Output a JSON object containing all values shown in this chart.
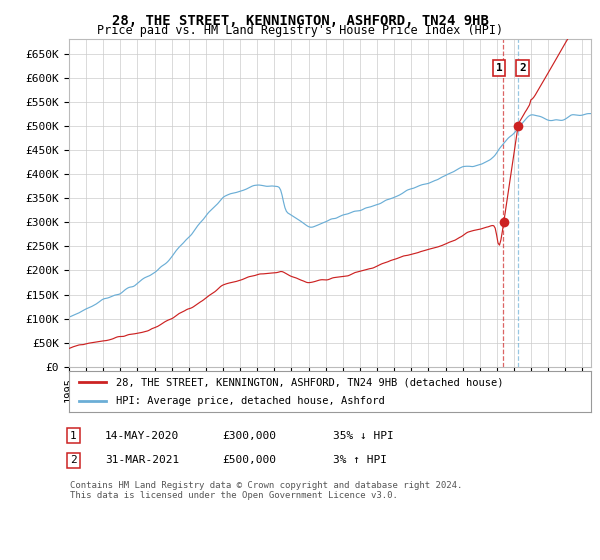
{
  "title": "28, THE STREET, KENNINGTON, ASHFORD, TN24 9HB",
  "subtitle": "Price paid vs. HM Land Registry's House Price Index (HPI)",
  "yticks": [
    0,
    50000,
    100000,
    150000,
    200000,
    250000,
    300000,
    350000,
    400000,
    450000,
    500000,
    550000,
    600000,
    650000
  ],
  "ylim": [
    0,
    680000
  ],
  "xlim_start": 1995.0,
  "xlim_end": 2025.5,
  "hpi_color": "#6baed6",
  "price_color": "#cc2222",
  "background_color": "#ffffff",
  "grid_color": "#cccccc",
  "transaction1": {
    "date": 2020.37,
    "price": 300000,
    "label": "1",
    "pct": "35% ↓ HPI",
    "display": "14-MAY-2020",
    "amount": "£300,000"
  },
  "transaction2": {
    "date": 2021.25,
    "price": 500000,
    "label": "2",
    "pct": "3% ↑ HPI",
    "display": "31-MAR-2021",
    "amount": "£500,000"
  },
  "legend_line1": "28, THE STREET, KENNINGTON, ASHFORD, TN24 9HB (detached house)",
  "legend_line2": "HPI: Average price, detached house, Ashford",
  "footer1": "Contains HM Land Registry data © Crown copyright and database right 2024.",
  "footer2": "This data is licensed under the Open Government Licence v3.0."
}
